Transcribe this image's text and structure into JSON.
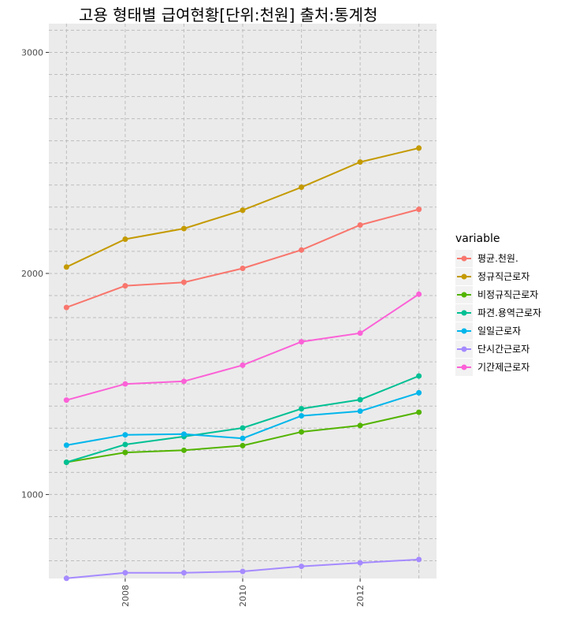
{
  "chart_data": {
    "type": "line",
    "title": "고용 형태별 급여현황[단위:천원] 출처:통계청",
    "xlabel": "",
    "ylabel": "",
    "x": [
      2007,
      2008,
      2009,
      2010,
      2011,
      2012,
      2013
    ],
    "xlim": [
      2006.7,
      2013.3
    ],
    "ylim": [
      620,
      3130
    ],
    "x_ticks": [
      2008,
      2010,
      2012
    ],
    "y_ticks": [
      1000,
      2000,
      3000
    ],
    "grid": true,
    "legend_title": "variable",
    "legend_position": "right",
    "series": [
      {
        "name": "평균.천원.",
        "color": "#F8766D",
        "values": [
          1846,
          1944,
          1960,
          2023,
          2106,
          2219,
          2290
        ]
      },
      {
        "name": "정규직근로자",
        "color": "#C49A00",
        "values": [
          2029,
          2155,
          2203,
          2286,
          2390,
          2504,
          2567
        ]
      },
      {
        "name": "비정규직근로자",
        "color": "#53B400",
        "values": [
          1146,
          1190,
          1200,
          1221,
          1283,
          1312,
          1372
        ]
      },
      {
        "name": "파견.용역근로자",
        "color": "#00C094",
        "values": [
          1146,
          1226,
          1262,
          1301,
          1388,
          1429,
          1536
        ]
      },
      {
        "name": "일일근로자",
        "color": "#00B6EB",
        "values": [
          1223,
          1270,
          1273,
          1254,
          1356,
          1377,
          1460
        ]
      },
      {
        "name": "단시간근로자",
        "color": "#A58AFF",
        "values": [
          621,
          646,
          646,
          652,
          675,
          691,
          706
        ]
      },
      {
        "name": "기간제근로자",
        "color": "#FB61D7",
        "values": [
          1427,
          1500,
          1512,
          1585,
          1691,
          1730,
          1906
        ]
      }
    ]
  }
}
